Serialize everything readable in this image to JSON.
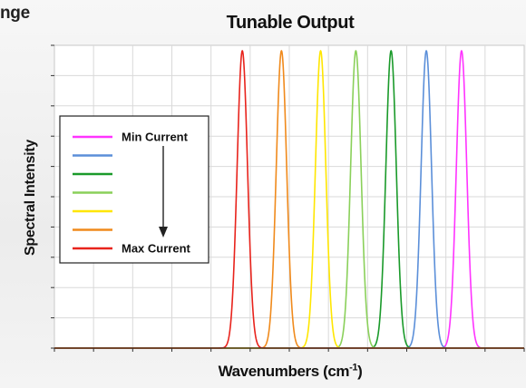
{
  "header": {
    "corner_text": "nge"
  },
  "chart_data": {
    "type": "line",
    "title": "Tunable Output",
    "xlabel_main": "Wavenumbers (cm",
    "xlabel_sup": "-1",
    "xlabel_tail": ")",
    "ylabel": "Spectral Intensity",
    "xlim": [
      0,
      12
    ],
    "ylim": [
      0,
      1
    ],
    "grid": true,
    "legend_placement": "left",
    "legend_arrow": "down",
    "series": [
      {
        "name": "Min Current",
        "color": "#ff33ff",
        "center": 10.4,
        "peak": 1.0
      },
      {
        "name": "",
        "color": "#5b8fd9",
        "center": 9.5,
        "peak": 1.0
      },
      {
        "name": "",
        "color": "#1a9a2a",
        "center": 8.6,
        "peak": 1.0
      },
      {
        "name": "",
        "color": "#8ad05a",
        "center": 7.7,
        "peak": 1.0
      },
      {
        "name": "",
        "color": "#ffe600",
        "center": 6.8,
        "peak": 1.0
      },
      {
        "name": "",
        "color": "#f08a1c",
        "center": 5.8,
        "peak": 1.0
      },
      {
        "name": "Max Current",
        "color": "#e8231c",
        "center": 4.8,
        "peak": 1.0
      }
    ],
    "peak_halfwidth": 0.28
  }
}
